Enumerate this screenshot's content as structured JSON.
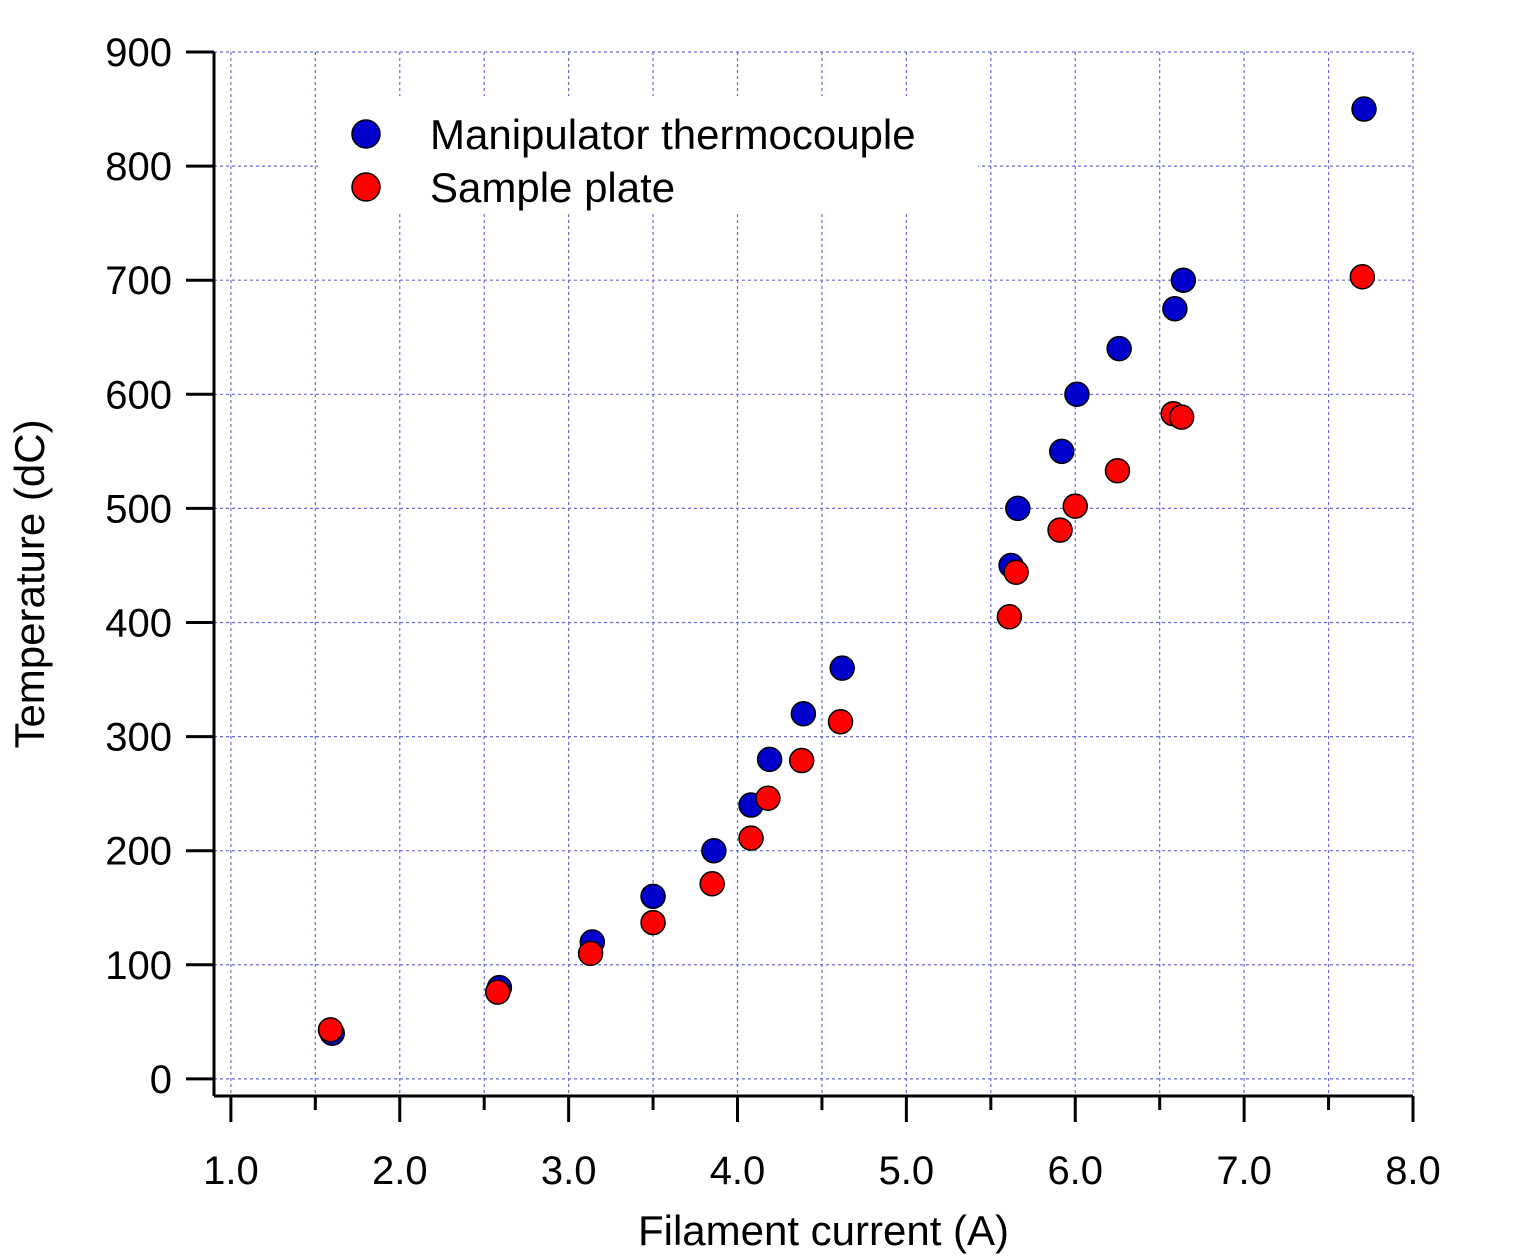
{
  "chart_data": {
    "type": "scatter",
    "xlabel": "Filament current (A)",
    "ylabel": "Temperature (dC)",
    "xlim": [
      0.9,
      8.0
    ],
    "ylim": [
      -15,
      900
    ],
    "x_ticks": [
      1.0,
      2.0,
      3.0,
      4.0,
      5.0,
      6.0,
      7.0,
      8.0
    ],
    "x_tick_labels": [
      "1.0",
      "2.0",
      "3.0",
      "4.0",
      "5.0",
      "6.0",
      "7.0",
      "8.0"
    ],
    "y_ticks": [
      0,
      100,
      200,
      300,
      400,
      500,
      600,
      700,
      800,
      900
    ],
    "y_tick_labels": [
      "0",
      "100",
      "200",
      "300",
      "400",
      "500",
      "600",
      "700",
      "800",
      "900"
    ],
    "grid": true,
    "legend_position": "top-left",
    "series": [
      {
        "name": "Manipulator thermocouple",
        "color": "#0000cc",
        "points": [
          [
            1.6,
            40
          ],
          [
            2.59,
            80
          ],
          [
            3.14,
            120
          ],
          [
            3.5,
            160
          ],
          [
            3.86,
            200
          ],
          [
            4.08,
            240
          ],
          [
            4.19,
            280
          ],
          [
            4.39,
            320
          ],
          [
            4.62,
            360
          ],
          [
            5.62,
            450
          ],
          [
            5.66,
            500
          ],
          [
            5.92,
            550
          ],
          [
            6.01,
            600
          ],
          [
            6.26,
            640
          ],
          [
            6.59,
            675
          ],
          [
            6.64,
            700
          ],
          [
            7.71,
            850
          ]
        ]
      },
      {
        "name": "Sample plate",
        "color": "#ff0000",
        "points": [
          [
            1.59,
            43
          ],
          [
            2.58,
            76
          ],
          [
            3.13,
            110
          ],
          [
            3.5,
            137
          ],
          [
            3.85,
            171
          ],
          [
            4.08,
            211
          ],
          [
            4.18,
            246
          ],
          [
            4.38,
            279
          ],
          [
            4.61,
            313
          ],
          [
            5.61,
            405
          ],
          [
            5.65,
            444
          ],
          [
            5.91,
            481
          ],
          [
            6.0,
            502
          ],
          [
            6.25,
            533
          ],
          [
            6.58,
            583
          ],
          [
            6.63,
            580
          ],
          [
            7.7,
            703
          ]
        ]
      }
    ]
  }
}
